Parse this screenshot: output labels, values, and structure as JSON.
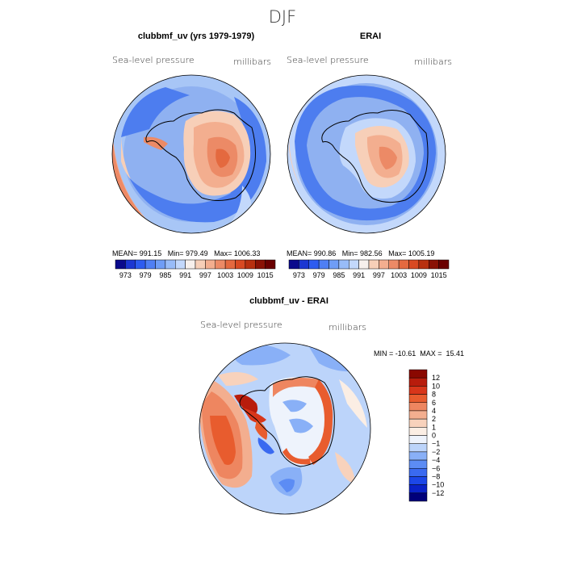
{
  "page": {
    "season_title": "DJF"
  },
  "chart_data": [
    {
      "type": "heatmap",
      "panel": "model",
      "title": "clubbmf_uv (yrs 1979-1979)",
      "left_label": "Sea-level pressure",
      "right_label": "millibars",
      "projection": "polar stereographic (south pole)",
      "stats_text": "MEAN= 991.15   Min= 979.49   Max= 1006.33",
      "stats": {
        "mean": 991.15,
        "min": 979.49,
        "max": 1006.33
      },
      "colorbar": {
        "orientation": "horizontal",
        "levels": [
          973,
          976,
          979,
          982,
          985,
          988,
          991,
          994,
          997,
          1000,
          1003,
          1006,
          1009,
          1012,
          1015
        ],
        "tick_labels": [
          "973",
          "979",
          "985",
          "991",
          "997",
          "1003",
          "1009",
          "1015"
        ],
        "colors": [
          "#0a0a8c",
          "#1c37d2",
          "#2d5cf0",
          "#4f7ff4",
          "#6f9df6",
          "#98bcf8",
          "#c3d8fb",
          "#f7f0ec",
          "#f7cfb8",
          "#f3ae8f",
          "#ec8a66",
          "#e4693f",
          "#d84a22",
          "#b8300f",
          "#8a1205",
          "#6a0000"
        ]
      }
    },
    {
      "type": "heatmap",
      "panel": "reanalysis",
      "title": "ERAI",
      "left_label": "Sea-level pressure",
      "right_label": "millibars",
      "projection": "polar stereographic (south pole)",
      "stats_text": "MEAN= 990.86   Min= 982.56   Max= 1005.19",
      "stats": {
        "mean": 990.86,
        "min": 982.56,
        "max": 1005.19
      },
      "colorbar": {
        "orientation": "horizontal",
        "levels": [
          973,
          976,
          979,
          982,
          985,
          988,
          991,
          994,
          997,
          1000,
          1003,
          1006,
          1009,
          1012,
          1015
        ],
        "tick_labels": [
          "973",
          "979",
          "985",
          "991",
          "997",
          "1003",
          "1009",
          "1015"
        ],
        "colors": [
          "#0a0a8c",
          "#1c37d2",
          "#2d5cf0",
          "#4f7ff4",
          "#6f9df6",
          "#98bcf8",
          "#c3d8fb",
          "#f7f0ec",
          "#f7cfb8",
          "#f3ae8f",
          "#ec8a66",
          "#e4693f",
          "#d84a22",
          "#b8300f",
          "#8a1205",
          "#6a0000"
        ]
      }
    },
    {
      "type": "heatmap",
      "panel": "difference",
      "title": "clubbmf_uv - ERAI",
      "left_label": "Sea-level pressure",
      "right_label": "millibars",
      "projection": "polar stereographic (south pole)",
      "stats_text": "MIN = -10.61  MAX =  15.41",
      "stats": {
        "min": -10.61,
        "max": 15.41
      },
      "colorbar": {
        "orientation": "vertical",
        "levels": [
          -12,
          -10,
          -8,
          -6,
          -4,
          -2,
          -1,
          0,
          1,
          2,
          4,
          6,
          8,
          10,
          12
        ],
        "tick_labels": [
          "12",
          "10",
          "8",
          "6",
          "4",
          "2",
          "1",
          "0",
          "−1",
          "−2",
          "−4",
          "−6",
          "−8",
          "−10",
          "−12"
        ],
        "colors": [
          "#00007a",
          "#0a22c8",
          "#1c47e8",
          "#3a6af0",
          "#5c8cf4",
          "#89b0f7",
          "#bcd4fa",
          "#eef3fc",
          "#fbeee4",
          "#f8d2bc",
          "#f3ae8f",
          "#ee8660",
          "#e85c2e",
          "#d8361a",
          "#b81c0c",
          "#8a0800"
        ]
      }
    }
  ]
}
